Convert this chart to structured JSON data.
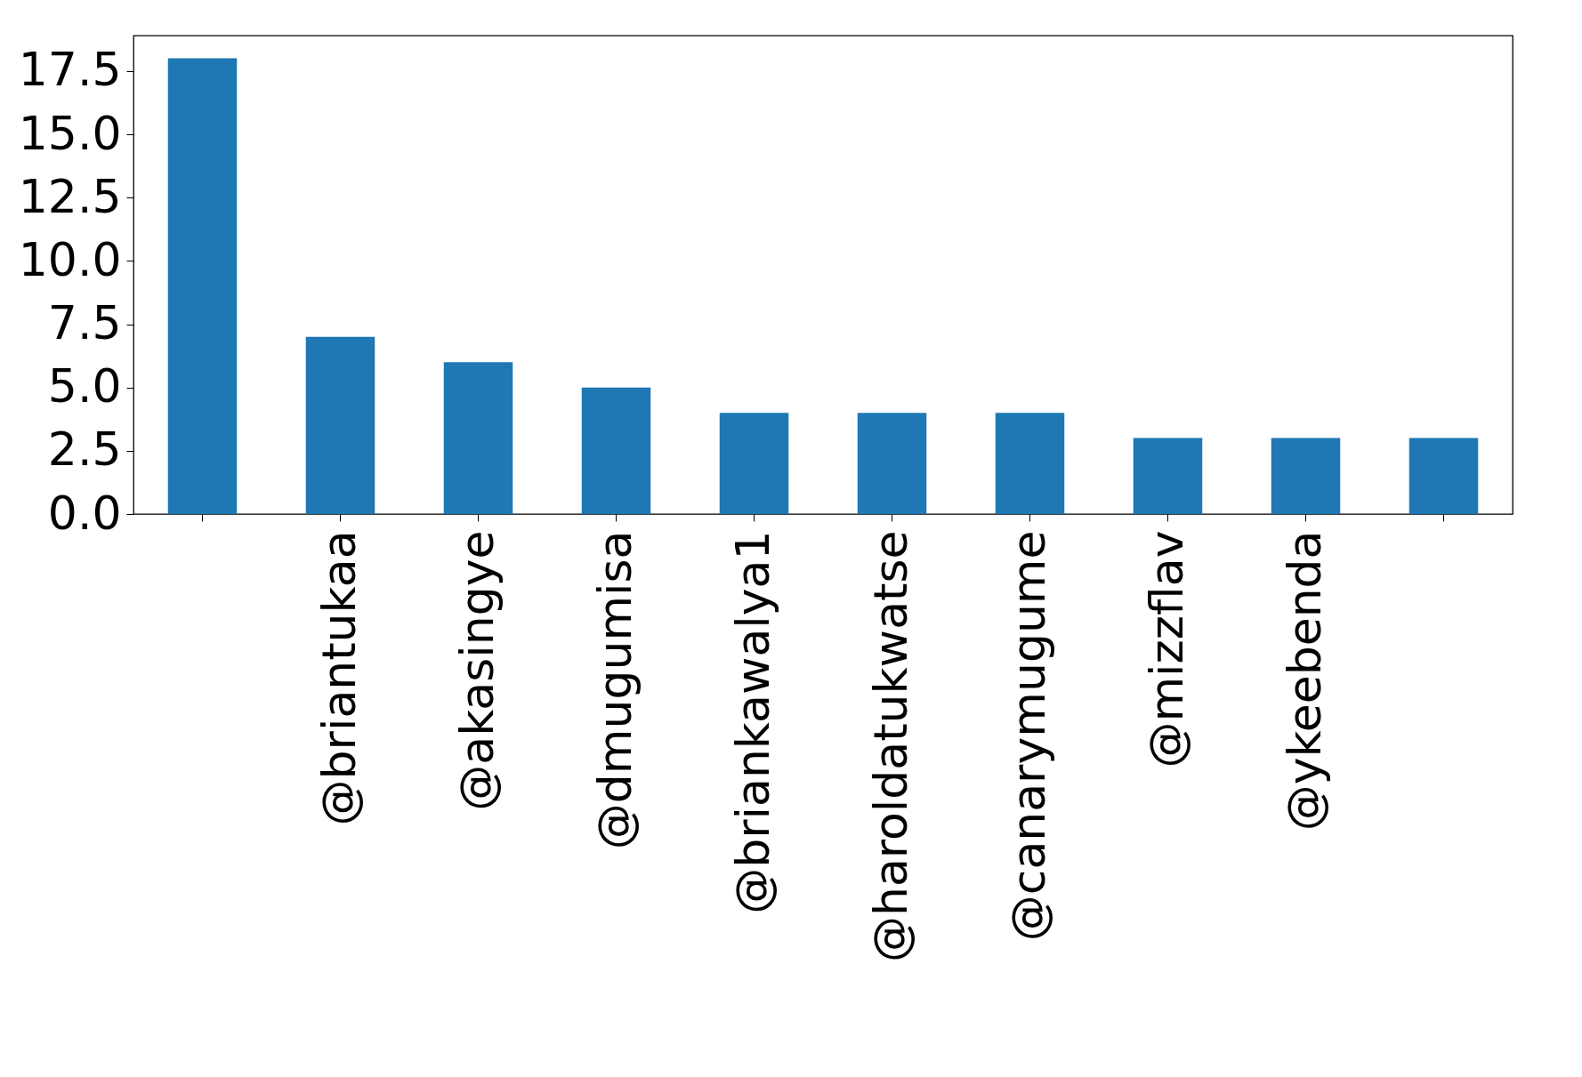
{
  "chart_data": {
    "type": "bar",
    "categories": [
      null,
      "@briantukaa",
      "@akasingye",
      "@dmugumisa",
      "@briankawalya1",
      "@haroldatukwatse",
      "@canarymugume",
      "@mizzflav",
      "@ykeebenda",
      null
    ],
    "values": [
      18,
      7,
      6,
      5,
      4,
      4,
      4,
      3,
      3,
      3
    ],
    "color": "#1f77b4",
    "ylim": [
      0,
      18.9
    ],
    "yticks": [
      {
        "value": 0,
        "label": "0.0"
      },
      {
        "value": 2.5,
        "label": "2.5"
      },
      {
        "value": 5,
        "label": "5.0"
      },
      {
        "value": 7.5,
        "label": "7.5"
      },
      {
        "value": 10,
        "label": "10.0"
      },
      {
        "value": 12.5,
        "label": "12.5"
      },
      {
        "value": 15,
        "label": "15.0"
      },
      {
        "value": 17.5,
        "label": "17.5"
      }
    ],
    "grid": false,
    "legend": false
  }
}
